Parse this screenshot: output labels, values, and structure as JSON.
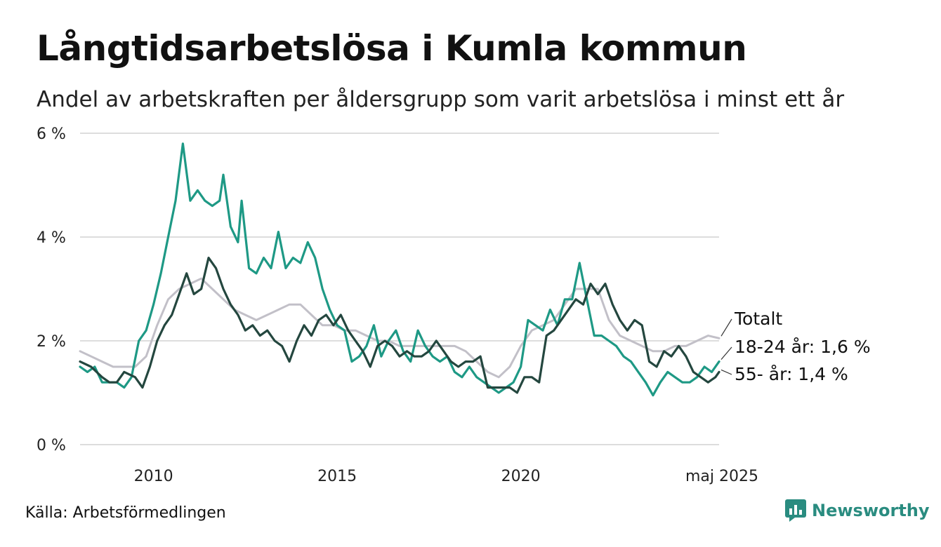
{
  "title": "Långtidsarbetslösa i Kumla kommun",
  "subtitle": "Andel av arbetskraften per åldersgrupp som varit arbetslösa i minst ett år",
  "source": "Källa: Arbetsförmedlingen",
  "brand": "Newsworthy",
  "colors": {
    "total": "#c2c0c8",
    "youth": "#1e9985",
    "senior": "#24473f",
    "grid": "#dddddd",
    "brand": "#2a8c80"
  },
  "chart_data": {
    "type": "line",
    "ylim": [
      0,
      6
    ],
    "yticks": [
      {
        "value": 0,
        "label": "0 %"
      },
      {
        "value": 2,
        "label": "2 %"
      },
      {
        "value": 4,
        "label": "4 %"
      },
      {
        "value": 6,
        "label": "6 %"
      }
    ],
    "xlim": [
      2008.0,
      2025.4
    ],
    "xticks": [
      {
        "value": 2010,
        "label": "2010"
      },
      {
        "value": 2015,
        "label": "2015"
      },
      {
        "value": 2020,
        "label": "2020"
      },
      {
        "value": 2025.4,
        "label": "maj 2025"
      }
    ],
    "series": [
      {
        "key": "total",
        "name": "Totalt",
        "end_label": "Totalt",
        "points": [
          [
            2008.0,
            1.8
          ],
          [
            2008.3,
            1.7
          ],
          [
            2008.6,
            1.6
          ],
          [
            2008.9,
            1.5
          ],
          [
            2009.2,
            1.5
          ],
          [
            2009.5,
            1.5
          ],
          [
            2009.8,
            1.7
          ],
          [
            2010.1,
            2.3
          ],
          [
            2010.4,
            2.8
          ],
          [
            2010.7,
            3.0
          ],
          [
            2011.0,
            3.1
          ],
          [
            2011.3,
            3.2
          ],
          [
            2011.6,
            3.0
          ],
          [
            2011.9,
            2.8
          ],
          [
            2012.2,
            2.6
          ],
          [
            2012.5,
            2.5
          ],
          [
            2012.8,
            2.4
          ],
          [
            2013.1,
            2.5
          ],
          [
            2013.4,
            2.6
          ],
          [
            2013.7,
            2.7
          ],
          [
            2014.0,
            2.7
          ],
          [
            2014.3,
            2.5
          ],
          [
            2014.6,
            2.3
          ],
          [
            2014.9,
            2.3
          ],
          [
            2015.2,
            2.2
          ],
          [
            2015.5,
            2.2
          ],
          [
            2015.8,
            2.1
          ],
          [
            2016.1,
            2.0
          ],
          [
            2016.4,
            2.0
          ],
          [
            2016.7,
            1.9
          ],
          [
            2017.0,
            1.9
          ],
          [
            2017.3,
            1.9
          ],
          [
            2017.6,
            1.9
          ],
          [
            2017.9,
            1.9
          ],
          [
            2018.2,
            1.9
          ],
          [
            2018.5,
            1.8
          ],
          [
            2018.8,
            1.6
          ],
          [
            2019.1,
            1.4
          ],
          [
            2019.4,
            1.3
          ],
          [
            2019.7,
            1.5
          ],
          [
            2020.0,
            1.9
          ],
          [
            2020.3,
            2.2
          ],
          [
            2020.6,
            2.3
          ],
          [
            2020.9,
            2.4
          ],
          [
            2021.2,
            2.7
          ],
          [
            2021.5,
            3.0
          ],
          [
            2021.8,
            3.0
          ],
          [
            2022.1,
            3.0
          ],
          [
            2022.4,
            2.4
          ],
          [
            2022.7,
            2.1
          ],
          [
            2023.0,
            2.0
          ],
          [
            2023.3,
            1.9
          ],
          [
            2023.6,
            1.8
          ],
          [
            2023.9,
            1.8
          ],
          [
            2024.2,
            1.9
          ],
          [
            2024.5,
            1.9
          ],
          [
            2024.8,
            2.0
          ],
          [
            2025.1,
            2.1
          ],
          [
            2025.4,
            2.05
          ]
        ]
      },
      {
        "key": "youth",
        "name": "18-24 år",
        "end_label": "18-24 år: 1,6 %",
        "points": [
          [
            2008.0,
            1.5
          ],
          [
            2008.2,
            1.4
          ],
          [
            2008.4,
            1.5
          ],
          [
            2008.6,
            1.2
          ],
          [
            2008.8,
            1.2
          ],
          [
            2009.0,
            1.2
          ],
          [
            2009.2,
            1.1
          ],
          [
            2009.4,
            1.3
          ],
          [
            2009.6,
            2.0
          ],
          [
            2009.8,
            2.2
          ],
          [
            2010.0,
            2.7
          ],
          [
            2010.2,
            3.3
          ],
          [
            2010.4,
            4.0
          ],
          [
            2010.6,
            4.7
          ],
          [
            2010.8,
            5.8
          ],
          [
            2011.0,
            4.7
          ],
          [
            2011.2,
            4.9
          ],
          [
            2011.4,
            4.7
          ],
          [
            2011.6,
            4.6
          ],
          [
            2011.8,
            4.7
          ],
          [
            2011.9,
            5.2
          ],
          [
            2012.1,
            4.2
          ],
          [
            2012.3,
            3.9
          ],
          [
            2012.4,
            4.7
          ],
          [
            2012.6,
            3.4
          ],
          [
            2012.8,
            3.3
          ],
          [
            2013.0,
            3.6
          ],
          [
            2013.2,
            3.4
          ],
          [
            2013.4,
            4.1
          ],
          [
            2013.6,
            3.4
          ],
          [
            2013.8,
            3.6
          ],
          [
            2014.0,
            3.5
          ],
          [
            2014.2,
            3.9
          ],
          [
            2014.4,
            3.6
          ],
          [
            2014.6,
            3.0
          ],
          [
            2014.8,
            2.6
          ],
          [
            2015.0,
            2.3
          ],
          [
            2015.2,
            2.2
          ],
          [
            2015.4,
            1.6
          ],
          [
            2015.6,
            1.7
          ],
          [
            2015.8,
            1.9
          ],
          [
            2016.0,
            2.3
          ],
          [
            2016.2,
            1.7
          ],
          [
            2016.4,
            2.0
          ],
          [
            2016.6,
            2.2
          ],
          [
            2016.8,
            1.8
          ],
          [
            2017.0,
            1.6
          ],
          [
            2017.2,
            2.2
          ],
          [
            2017.4,
            1.9
          ],
          [
            2017.6,
            1.7
          ],
          [
            2017.8,
            1.6
          ],
          [
            2018.0,
            1.7
          ],
          [
            2018.2,
            1.4
          ],
          [
            2018.4,
            1.3
          ],
          [
            2018.6,
            1.5
          ],
          [
            2018.8,
            1.3
          ],
          [
            2019.0,
            1.2
          ],
          [
            2019.2,
            1.1
          ],
          [
            2019.4,
            1.0
          ],
          [
            2019.6,
            1.1
          ],
          [
            2019.8,
            1.2
          ],
          [
            2020.0,
            1.5
          ],
          [
            2020.2,
            2.4
          ],
          [
            2020.4,
            2.3
          ],
          [
            2020.6,
            2.2
          ],
          [
            2020.8,
            2.6
          ],
          [
            2021.0,
            2.3
          ],
          [
            2021.2,
            2.8
          ],
          [
            2021.4,
            2.8
          ],
          [
            2021.6,
            3.5
          ],
          [
            2021.8,
            2.8
          ],
          [
            2022.0,
            2.1
          ],
          [
            2022.2,
            2.1
          ],
          [
            2022.4,
            2.0
          ],
          [
            2022.6,
            1.9
          ],
          [
            2022.8,
            1.7
          ],
          [
            2023.0,
            1.6
          ],
          [
            2023.2,
            1.4
          ],
          [
            2023.4,
            1.2
          ],
          [
            2023.6,
            0.95
          ],
          [
            2023.8,
            1.2
          ],
          [
            2024.0,
            1.4
          ],
          [
            2024.2,
            1.3
          ],
          [
            2024.4,
            1.2
          ],
          [
            2024.6,
            1.2
          ],
          [
            2024.8,
            1.3
          ],
          [
            2025.0,
            1.5
          ],
          [
            2025.2,
            1.4
          ],
          [
            2025.4,
            1.6
          ]
        ]
      },
      {
        "key": "senior",
        "name": "55- år",
        "end_label": "55- år: 1,4 %",
        "points": [
          [
            2008.0,
            1.6
          ],
          [
            2008.3,
            1.5
          ],
          [
            2008.6,
            1.3
          ],
          [
            2008.8,
            1.2
          ],
          [
            2009.0,
            1.2
          ],
          [
            2009.2,
            1.4
          ],
          [
            2009.5,
            1.3
          ],
          [
            2009.7,
            1.1
          ],
          [
            2009.9,
            1.5
          ],
          [
            2010.1,
            2.0
          ],
          [
            2010.3,
            2.3
          ],
          [
            2010.5,
            2.5
          ],
          [
            2010.7,
            2.9
          ],
          [
            2010.9,
            3.3
          ],
          [
            2011.1,
            2.9
          ],
          [
            2011.3,
            3.0
          ],
          [
            2011.5,
            3.6
          ],
          [
            2011.7,
            3.4
          ],
          [
            2011.9,
            3.0
          ],
          [
            2012.1,
            2.7
          ],
          [
            2012.3,
            2.5
          ],
          [
            2012.5,
            2.2
          ],
          [
            2012.7,
            2.3
          ],
          [
            2012.9,
            2.1
          ],
          [
            2013.1,
            2.2
          ],
          [
            2013.3,
            2.0
          ],
          [
            2013.5,
            1.9
          ],
          [
            2013.7,
            1.6
          ],
          [
            2013.9,
            2.0
          ],
          [
            2014.1,
            2.3
          ],
          [
            2014.3,
            2.1
          ],
          [
            2014.5,
            2.4
          ],
          [
            2014.7,
            2.5
          ],
          [
            2014.9,
            2.3
          ],
          [
            2015.1,
            2.5
          ],
          [
            2015.3,
            2.2
          ],
          [
            2015.5,
            2.0
          ],
          [
            2015.7,
            1.8
          ],
          [
            2015.9,
            1.5
          ],
          [
            2016.1,
            1.9
          ],
          [
            2016.3,
            2.0
          ],
          [
            2016.5,
            1.9
          ],
          [
            2016.7,
            1.7
          ],
          [
            2016.9,
            1.8
          ],
          [
            2017.1,
            1.7
          ],
          [
            2017.3,
            1.7
          ],
          [
            2017.5,
            1.8
          ],
          [
            2017.7,
            2.0
          ],
          [
            2017.9,
            1.8
          ],
          [
            2018.1,
            1.6
          ],
          [
            2018.3,
            1.5
          ],
          [
            2018.5,
            1.6
          ],
          [
            2018.7,
            1.6
          ],
          [
            2018.9,
            1.7
          ],
          [
            2019.1,
            1.1
          ],
          [
            2019.3,
            1.1
          ],
          [
            2019.5,
            1.1
          ],
          [
            2019.7,
            1.1
          ],
          [
            2019.9,
            1.0
          ],
          [
            2020.1,
            1.3
          ],
          [
            2020.3,
            1.3
          ],
          [
            2020.5,
            1.2
          ],
          [
            2020.7,
            2.1
          ],
          [
            2020.9,
            2.2
          ],
          [
            2021.1,
            2.4
          ],
          [
            2021.3,
            2.6
          ],
          [
            2021.5,
            2.8
          ],
          [
            2021.7,
            2.7
          ],
          [
            2021.9,
            3.1
          ],
          [
            2022.1,
            2.9
          ],
          [
            2022.3,
            3.1
          ],
          [
            2022.5,
            2.7
          ],
          [
            2022.7,
            2.4
          ],
          [
            2022.9,
            2.2
          ],
          [
            2023.1,
            2.4
          ],
          [
            2023.3,
            2.3
          ],
          [
            2023.5,
            1.6
          ],
          [
            2023.7,
            1.5
          ],
          [
            2023.9,
            1.8
          ],
          [
            2024.1,
            1.7
          ],
          [
            2024.3,
            1.9
          ],
          [
            2024.5,
            1.7
          ],
          [
            2024.7,
            1.4
          ],
          [
            2024.9,
            1.3
          ],
          [
            2025.1,
            1.2
          ],
          [
            2025.3,
            1.3
          ],
          [
            2025.4,
            1.4
          ]
        ]
      }
    ]
  }
}
